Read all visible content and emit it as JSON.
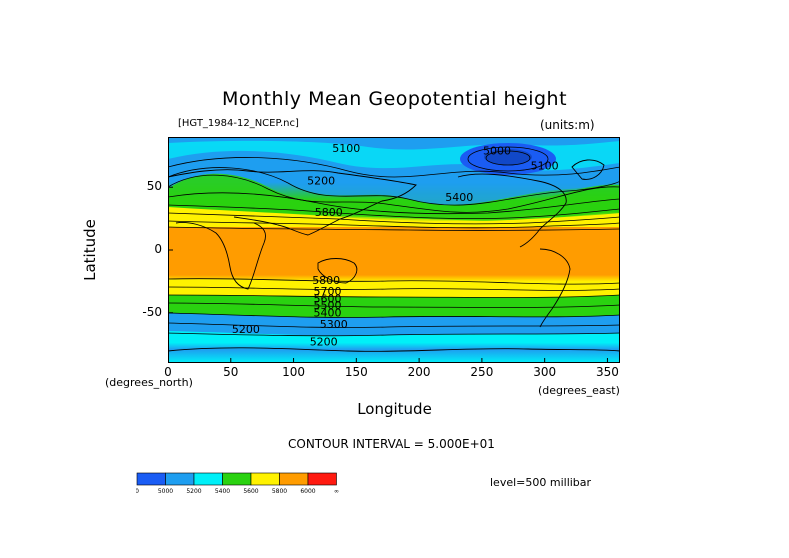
{
  "title": "Monthly Mean Geopotential height",
  "file_label": "[HGT_1984-12_NCEP.nc]",
  "units_label": "(units:m)",
  "ylabel": "Latitude",
  "xlabel": "Longitude",
  "deg_north": "(degrees_north)",
  "deg_east": "(degrees_east)",
  "contour_interval": "CONTOUR INTERVAL = 5.000E+01",
  "level_label": "level=500 millibar",
  "chart_data": {
    "type": "heatmap",
    "title": "Monthly Mean Geopotential height",
    "xlabel": "Longitude",
    "ylabel": "Latitude",
    "xlim": [
      0,
      360
    ],
    "ylim": [
      -90,
      90
    ],
    "x_ticks": [
      0,
      50,
      100,
      150,
      200,
      250,
      300,
      350
    ],
    "y_ticks": [
      50,
      0,
      -50
    ],
    "contour_labels": [
      {
        "text": "5100",
        "lon": 142,
        "lat": 78
      },
      {
        "text": "5000",
        "lon": 262,
        "lat": 76
      },
      {
        "text": "5100",
        "lon": 300,
        "lat": 64
      },
      {
        "text": "5200",
        "lon": 122,
        "lat": 52
      },
      {
        "text": "5400",
        "lon": 232,
        "lat": 39
      },
      {
        "text": "5800",
        "lon": 128,
        "lat": 27
      },
      {
        "text": "5800",
        "lon": 126,
        "lat": -27
      },
      {
        "text": "5700",
        "lon": 127,
        "lat": -36
      },
      {
        "text": "5600",
        "lon": 127,
        "lat": -42
      },
      {
        "text": "5500",
        "lon": 127,
        "lat": -47
      },
      {
        "text": "5400",
        "lon": 127,
        "lat": -53
      },
      {
        "text": "5300",
        "lon": 132,
        "lat": -62
      },
      {
        "text": "5200",
        "lon": 62,
        "lat": -66
      },
      {
        "text": "5200",
        "lon": 124,
        "lat": -76
      }
    ],
    "colorbar": {
      "boundaries": [
        "0",
        "5000",
        "5200",
        "5400",
        "5600",
        "5800",
        "6000",
        "∞"
      ],
      "colors": [
        "#1a5cf4",
        "#1e9ef0",
        "#00f0f8",
        "#2ad210",
        "#fff200",
        "#ff9c00",
        "#ff1a10"
      ]
    }
  }
}
